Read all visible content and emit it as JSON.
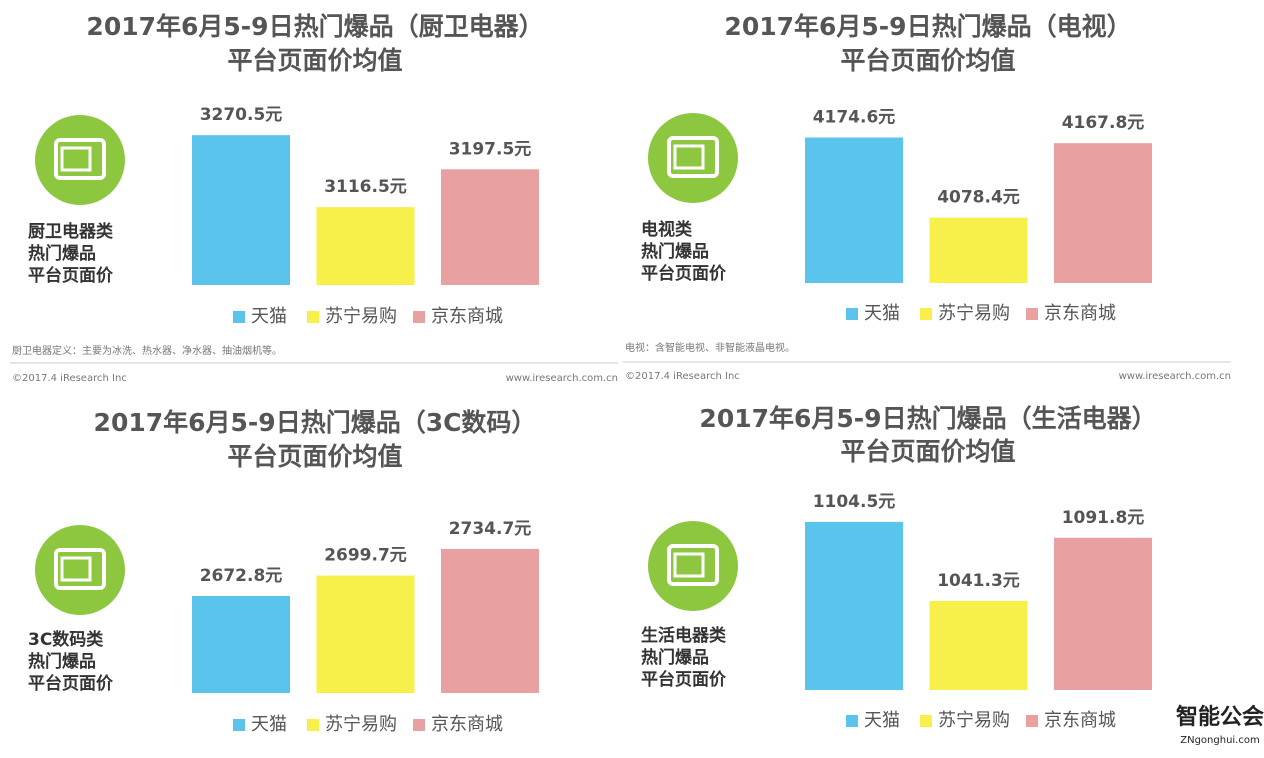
{
  "chart_data": [
    {
      "type": "bar",
      "title": "2017年6月5-9日热门爆品（厨卫电器）",
      "subtitle": "平台页面价均值",
      "annotation": [
        "厨卫电器类",
        "热门爆品",
        "平台页面价"
      ],
      "categories": [
        null
      ],
      "series": [
        {
          "name": "天猫",
          "color": "#5bc4ec",
          "values": [
            3270.5
          ],
          "value_labels": [
            "3270.5元"
          ]
        },
        {
          "name": "苏宁易购",
          "color": "#f8f04a",
          "values": [
            3116.5
          ],
          "value_labels": [
            "3116.5元"
          ]
        },
        {
          "name": "京东商城",
          "color": "#e8a1a0",
          "values": [
            3197.5
          ],
          "value_labels": [
            "3197.5元"
          ]
        }
      ],
      "ylim": [
        2950,
        3335
      ],
      "footnote": "厨卫电器定义：主要为冰洗、热水器、净水器、抽油烟机等。",
      "source": "©2017.4 iResearch Inc",
      "website": "www.iresearch.com.cn"
    },
    {
      "type": "bar",
      "title": "2017年6月5-9日热门爆品（电视）",
      "subtitle": "平台页面价均值",
      "annotation": [
        "电视类",
        "热门爆品",
        "平台页面价"
      ],
      "categories": [
        null
      ],
      "series": [
        {
          "name": "天猫",
          "color": "#5bc4ec",
          "values": [
            4174.6
          ],
          "value_labels": [
            "4174.6元"
          ]
        },
        {
          "name": "苏宁易购",
          "color": "#f8f04a",
          "values": [
            4078.4
          ],
          "value_labels": [
            "4078.4元"
          ]
        },
        {
          "name": "京东商城",
          "color": "#e8a1a0",
          "values": [
            4167.8
          ],
          "value_labels": [
            "4167.8元"
          ]
        }
      ],
      "ylim": [
        4000,
        4216
      ],
      "footnote": "电视：含智能电视、非智能液晶电视。",
      "source": "©2017.4 iResearch Inc",
      "website": "www.iresearch.com.cn"
    },
    {
      "type": "bar",
      "title": "2017年6月5-9日热门爆品（3C数码）",
      "subtitle": "平台页面价均值",
      "annotation": [
        "3C数码类",
        "热门爆品",
        "平台页面价"
      ],
      "categories": [
        null
      ],
      "series": [
        {
          "name": "天猫",
          "color": "#5bc4ec",
          "values": [
            2672.8
          ],
          "value_labels": [
            "2672.8元"
          ]
        },
        {
          "name": "苏宁易购",
          "color": "#f8f04a",
          "values": [
            2699.7
          ],
          "value_labels": [
            "2699.7元"
          ]
        },
        {
          "name": "京东商城",
          "color": "#e8a1a0",
          "values": [
            2734.7
          ],
          "value_labels": [
            "2734.7元"
          ]
        }
      ],
      "ylim": [
        2545,
        2782
      ]
    },
    {
      "type": "bar",
      "title": "2017年6月5-9日热门爆品（生活电器）",
      "subtitle": "平台页面价均值",
      "annotation": [
        "生活电器类",
        "热门爆品",
        "平台页面价"
      ],
      "categories": [
        null
      ],
      "series": [
        {
          "name": "天猫",
          "color": "#5bc4ec",
          "values": [
            1104.5
          ],
          "value_labels": [
            "1104.5元"
          ]
        },
        {
          "name": "苏宁易购",
          "color": "#f8f04a",
          "values": [
            1041.3
          ],
          "value_labels": [
            "1041.3元"
          ]
        },
        {
          "name": "京东商城",
          "color": "#e8a1a0",
          "values": [
            1091.8
          ],
          "value_labels": [
            "1091.8元"
          ]
        }
      ],
      "ylim": [
        970,
        1114
      ]
    }
  ],
  "watermark": {
    "mark": "智能公会",
    "url": "ZNgonghui.com"
  }
}
